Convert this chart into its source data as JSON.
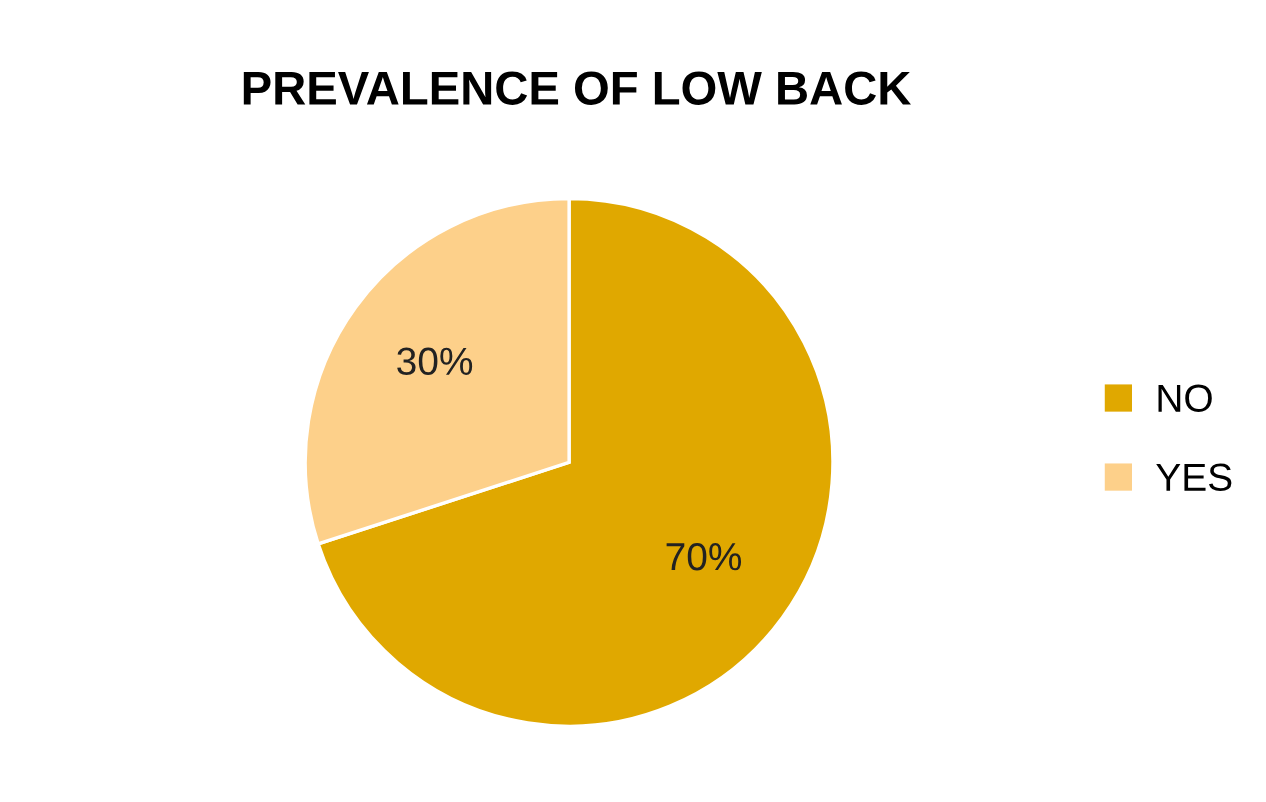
{
  "chart_data": {
    "type": "pie",
    "title": "PREVALENCE OF LOW BACK",
    "categories": [
      "NO",
      "YES"
    ],
    "values": [
      70,
      30
    ],
    "colors": [
      "#e0a800",
      "#fdd08a"
    ],
    "value_labels": [
      "70%",
      "30%"
    ],
    "legend": "right"
  }
}
